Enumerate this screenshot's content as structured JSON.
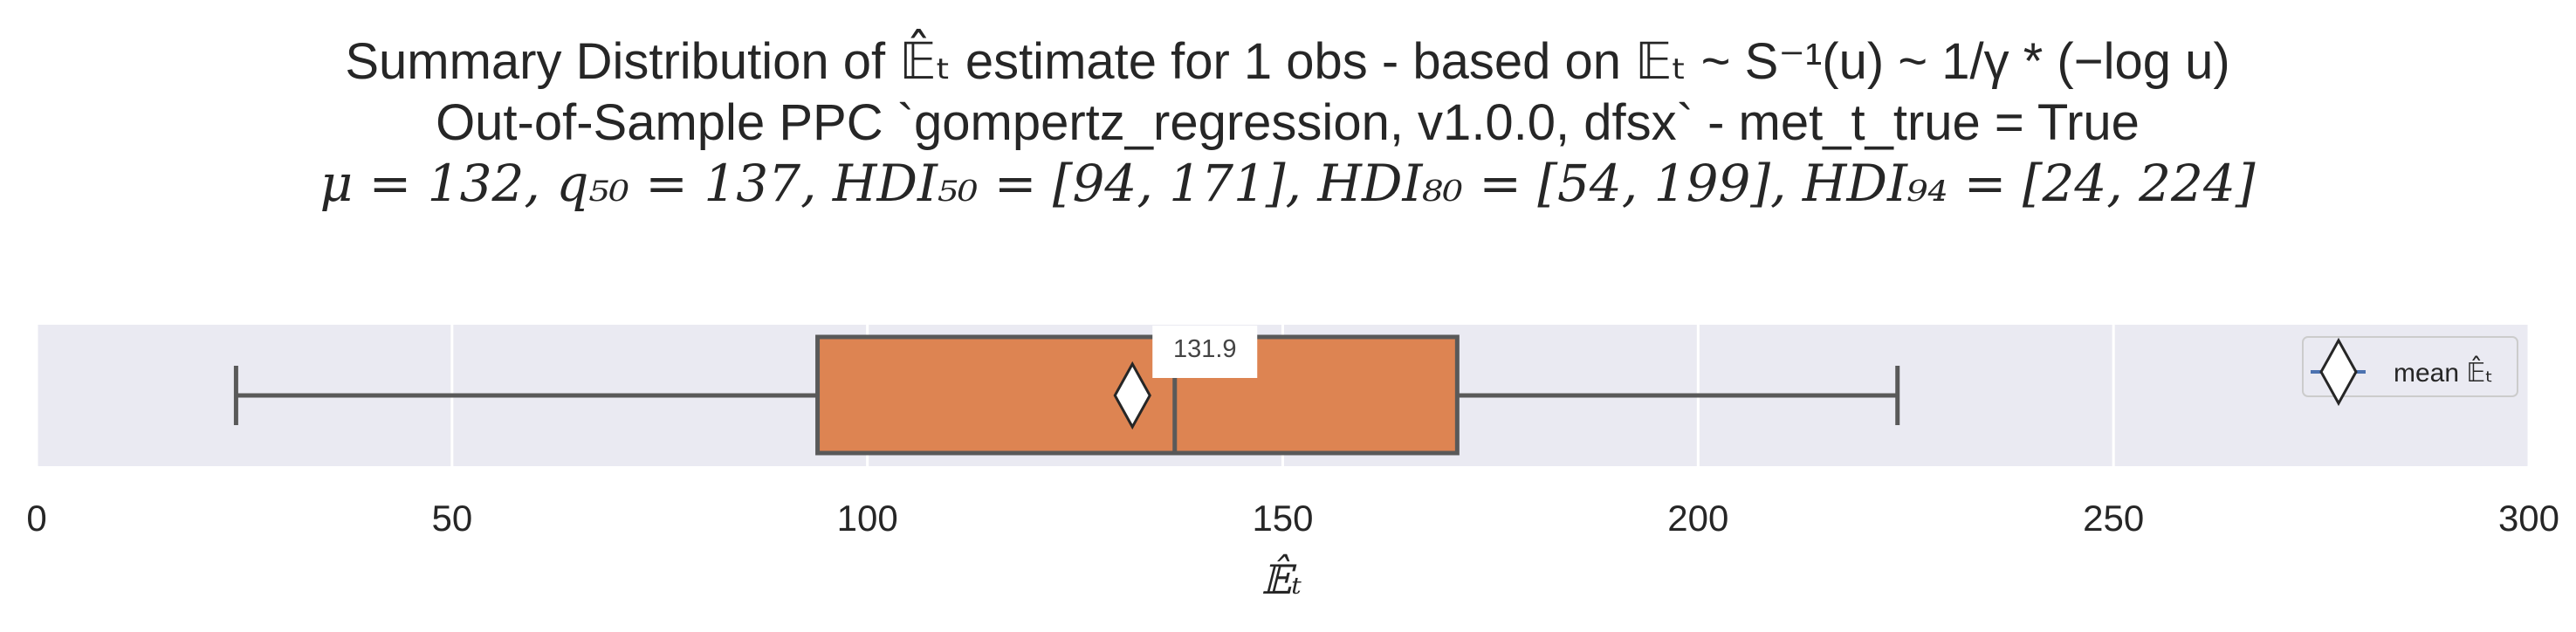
{
  "chart_data": {
    "type": "box",
    "title_lines": [
      "Summary Distribution of 𝔼̂ₜ estimate for 1 obs - based on 𝔼ₜ ~ S⁻¹(u) ~ 1/γ * (−log u)",
      "Out-of-Sample PPC `gompertz_regression, v1.0.0, dfsx` - met_t_true = True",
      "μ = 132, q₅₀ = 137, HDI₅₀ = [94, 171], HDI₈₀ = [54, 199], HDI₉₄ = [24, 224]"
    ],
    "xlabel": "𝔼̂ₜ",
    "xlim": [
      0,
      300
    ],
    "xticks": [
      0,
      50,
      100,
      150,
      200,
      250,
      300
    ],
    "grid": true,
    "box": {
      "whisker_low": 24,
      "q1": 94,
      "median": 137,
      "q3": 171,
      "whisker_high": 224,
      "mean": 131.9,
      "box_color": "#dd8452",
      "edge_color": "#595959"
    },
    "annotation": "131.9",
    "legend": {
      "placement": "right",
      "label": "mean 𝔼̂ₜ",
      "line_color": "#4c72b0"
    },
    "colors": {
      "axes_bg": "#eaeaf2",
      "grid": "#ffffff"
    }
  }
}
